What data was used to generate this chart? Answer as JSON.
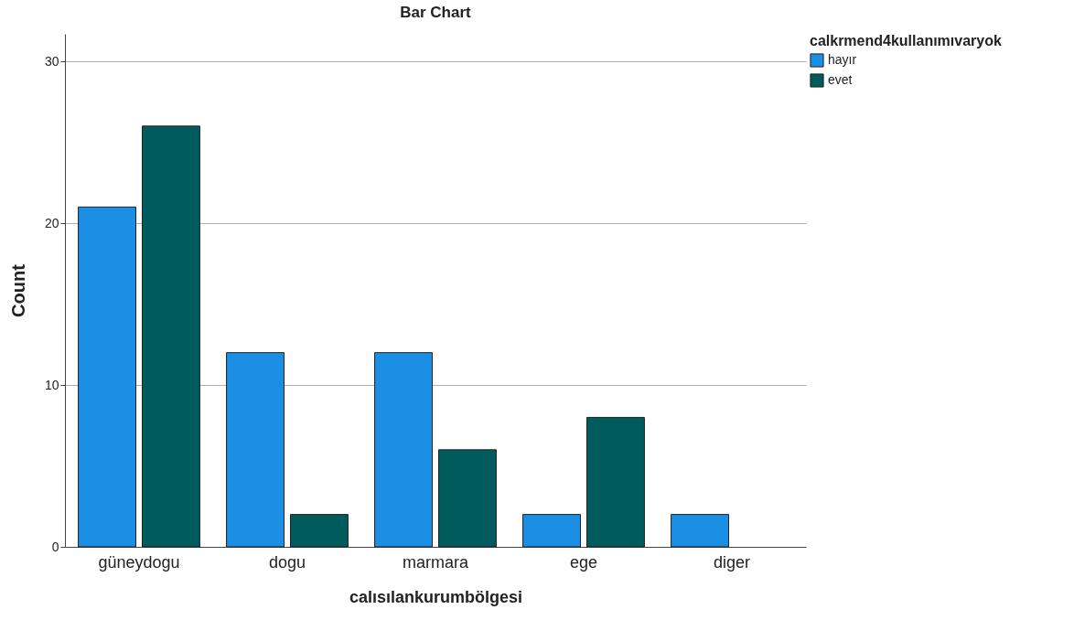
{
  "chart_data": {
    "type": "bar",
    "title": "Bar Chart",
    "xlabel": "calısılankurumbölgesi",
    "ylabel": "Count",
    "legend_title": "calkrmend4kullanımıvaryok",
    "categories": [
      "güneydogu",
      "dogu",
      "marmara",
      "ege",
      "diger"
    ],
    "series": [
      {
        "name": "hayır",
        "color": "#1a8fe3",
        "values": [
          21,
          12,
          12,
          2,
          2
        ]
      },
      {
        "name": "evet",
        "color": "#005c5c",
        "values": [
          26,
          2,
          6,
          8,
          null
        ]
      }
    ],
    "ylim": [
      0,
      31.7
    ],
    "yticks": [
      0,
      10,
      20,
      30
    ],
    "grid": "y",
    "legend": "top right"
  }
}
